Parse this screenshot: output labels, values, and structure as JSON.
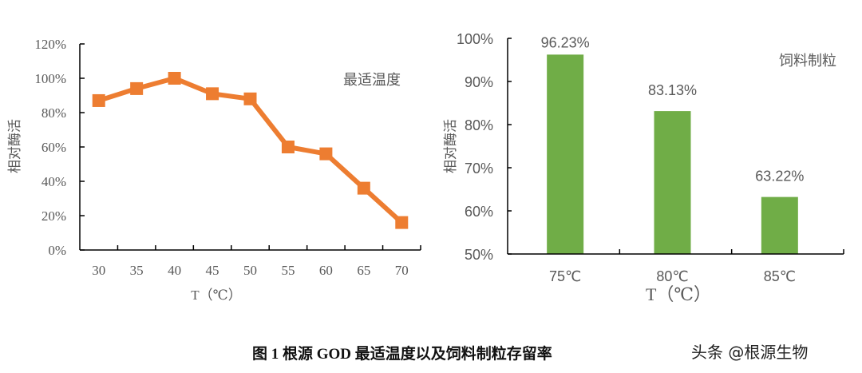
{
  "chart_data": [
    {
      "type": "line",
      "title": "最适温度",
      "xlabel": "T（℃）",
      "ylabel": "相对酶活",
      "categories": [
        "30",
        "35",
        "40",
        "45",
        "50",
        "55",
        "60",
        "65",
        "70"
      ],
      "series": [
        {
          "name": "最适温度",
          "color": "#ED7D31",
          "marker": "square",
          "values": [
            87,
            94,
            100,
            91,
            88,
            60,
            56,
            36,
            16
          ]
        }
      ],
      "yticks": [
        "0%",
        "20%",
        "40%",
        "60%",
        "80%",
        "100%",
        "120%"
      ],
      "ylim": [
        0,
        120
      ],
      "grid": false,
      "legend": "none (inline label top-right)"
    },
    {
      "type": "bar",
      "title": "饲料制粒",
      "xlabel": "T（℃）",
      "ylabel": "相对酶活",
      "categories": [
        "75℃",
        "80℃",
        "85℃"
      ],
      "series": [
        {
          "name": "饲料制粒",
          "color": "#70AD47",
          "values": [
            96.23,
            83.13,
            63.22
          ],
          "labels": [
            "96.23%",
            "83.13%",
            "63.22%"
          ]
        }
      ],
      "yticks": [
        "50%",
        "60%",
        "70%",
        "80%",
        "90%",
        "100%"
      ],
      "ylim": [
        50,
        100
      ],
      "grid": false,
      "legend": "none (inline label top-right)"
    }
  ],
  "caption": "图 1  根源 GOD 最适温度以及饲料制粒存留率",
  "watermark": "头条 @根源生物"
}
